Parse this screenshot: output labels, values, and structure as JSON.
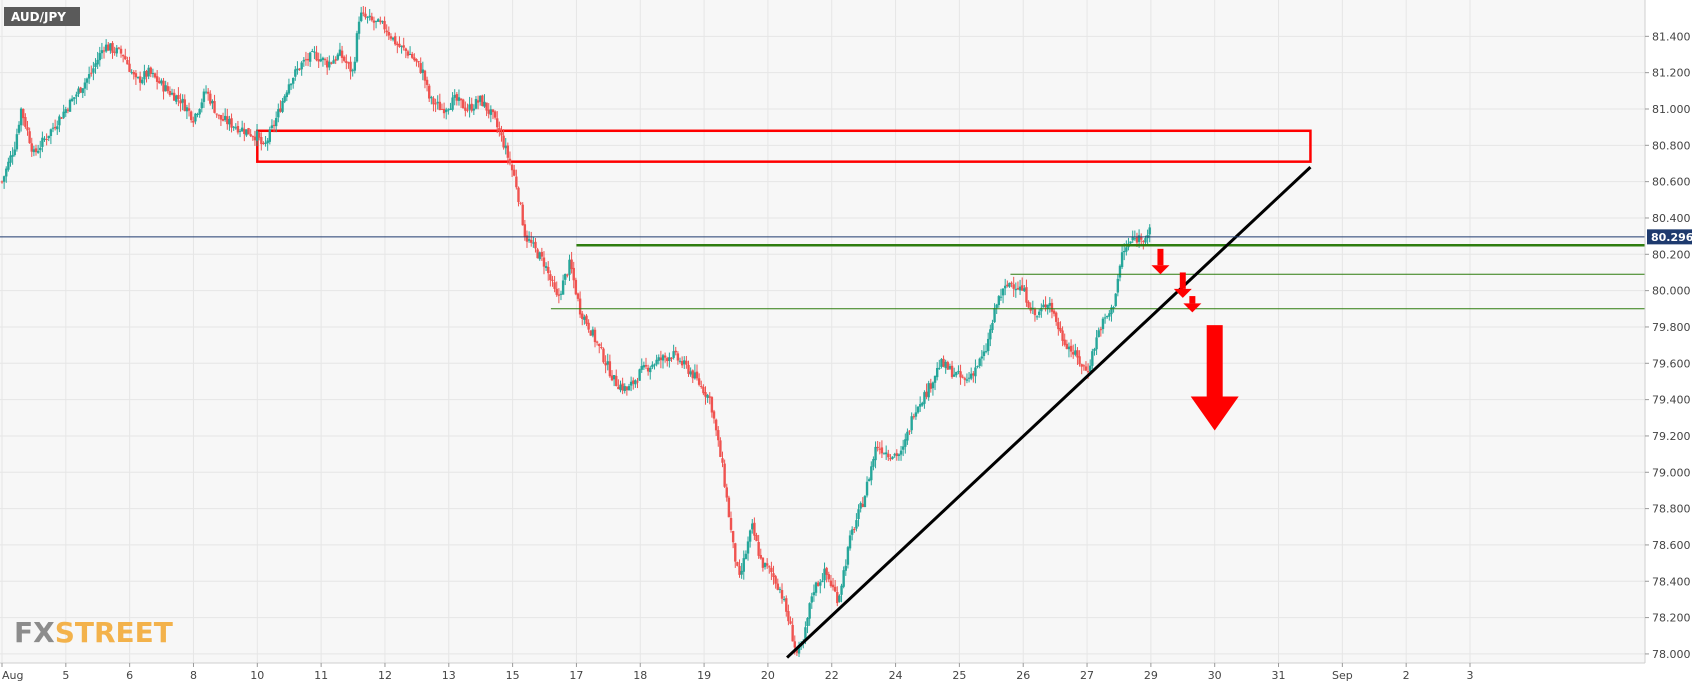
{
  "symbol": "AUD/JPY",
  "current_price": "80.296",
  "logo": "FXSTREET",
  "colors": {
    "bull": "#26a69a",
    "bear": "#ef5350",
    "zone": "#ff0000",
    "support": "#2e7d0f",
    "trendline": "#000000",
    "arrow": "#ff0000",
    "price_line": "#1e3a6e",
    "grid": "#e6e6e6",
    "background": "#f7f7f7"
  },
  "chart_data": {
    "type": "candlestick",
    "title": "AUD/JPY",
    "y_range": [
      77.95,
      81.6
    ],
    "y_ticks": [
      "78.000",
      "78.200",
      "78.400",
      "78.600",
      "78.800",
      "79.000",
      "79.200",
      "79.400",
      "79.600",
      "79.800",
      "80.000",
      "80.200",
      "80.400",
      "80.600",
      "80.800",
      "81.000",
      "81.200",
      "81.400"
    ],
    "x_range": [
      0,
      23
    ],
    "x_ticks": [
      {
        "label": "Aug",
        "x": 0
      },
      {
        "label": "5",
        "x": 1
      },
      {
        "label": "6",
        "x": 2
      },
      {
        "label": "8",
        "x": 3
      },
      {
        "label": "10",
        "x": 4
      },
      {
        "label": "11",
        "x": 5
      },
      {
        "label": "12",
        "x": 6
      },
      {
        "label": "13",
        "x": 7
      },
      {
        "label": "15",
        "x": 8
      },
      {
        "label": "17",
        "x": 9
      },
      {
        "label": "18",
        "x": 10
      },
      {
        "label": "19",
        "x": 11
      },
      {
        "label": "20",
        "x": 12
      },
      {
        "label": "22",
        "x": 13
      },
      {
        "label": "24",
        "x": 14
      },
      {
        "label": "25",
        "x": 15
      },
      {
        "label": "26",
        "x": 16
      },
      {
        "label": "27",
        "x": 17
      },
      {
        "label": "29",
        "x": 18
      },
      {
        "label": "30",
        "x": 19
      },
      {
        "label": "31",
        "x": 20
      },
      {
        "label": "Sep",
        "x": 21
      },
      {
        "label": "2",
        "x": 22
      },
      {
        "label": "3",
        "x": 23
      }
    ],
    "price_path": [
      [
        0.0,
        80.6
      ],
      [
        0.2,
        80.8
      ],
      [
        0.3,
        81.0
      ],
      [
        0.5,
        80.75
      ],
      [
        0.8,
        80.9
      ],
      [
        1.1,
        81.05
      ],
      [
        1.4,
        81.2
      ],
      [
        1.6,
        81.35
      ],
      [
        1.9,
        81.3
      ],
      [
        2.1,
        81.15
      ],
      [
        2.3,
        81.2
      ],
      [
        2.6,
        81.1
      ],
      [
        2.8,
        81.05
      ],
      [
        3.0,
        80.95
      ],
      [
        3.2,
        81.1
      ],
      [
        3.4,
        80.95
      ],
      [
        3.7,
        80.9
      ],
      [
        4.0,
        80.85
      ],
      [
        4.1,
        80.78
      ],
      [
        4.3,
        80.95
      ],
      [
        4.5,
        81.15
      ],
      [
        4.7,
        81.25
      ],
      [
        4.9,
        81.3
      ],
      [
        5.1,
        81.25
      ],
      [
        5.3,
        81.3
      ],
      [
        5.5,
        81.2
      ],
      [
        5.6,
        81.52
      ],
      [
        5.8,
        81.48
      ],
      [
        6.0,
        81.45
      ],
      [
        6.2,
        81.35
      ],
      [
        6.4,
        81.3
      ],
      [
        6.6,
        81.2
      ],
      [
        6.7,
        81.05
      ],
      [
        6.9,
        81.0
      ],
      [
        7.1,
        81.05
      ],
      [
        7.3,
        81.0
      ],
      [
        7.5,
        81.05
      ],
      [
        7.7,
        80.95
      ],
      [
        7.85,
        80.82
      ],
      [
        8.05,
        80.6
      ],
      [
        8.2,
        80.3
      ],
      [
        8.5,
        80.15
      ],
      [
        8.7,
        79.95
      ],
      [
        8.9,
        80.15
      ],
      [
        9.05,
        79.9
      ],
      [
        9.2,
        79.8
      ],
      [
        9.4,
        79.65
      ],
      [
        9.6,
        79.5
      ],
      [
        9.8,
        79.45
      ],
      [
        10.0,
        79.55
      ],
      [
        10.2,
        79.6
      ],
      [
        10.5,
        79.65
      ],
      [
        10.8,
        79.55
      ],
      [
        11.1,
        79.4
      ],
      [
        11.3,
        79.0
      ],
      [
        11.45,
        78.6
      ],
      [
        11.55,
        78.4
      ],
      [
        11.75,
        78.7
      ],
      [
        11.9,
        78.5
      ],
      [
        12.05,
        78.45
      ],
      [
        12.2,
        78.35
      ],
      [
        12.35,
        78.15
      ],
      [
        12.45,
        78.0
      ],
      [
        12.55,
        78.05
      ],
      [
        12.7,
        78.35
      ],
      [
        12.9,
        78.45
      ],
      [
        13.1,
        78.3
      ],
      [
        13.3,
        78.65
      ],
      [
        13.5,
        78.85
      ],
      [
        13.7,
        79.15
      ],
      [
        13.9,
        79.1
      ],
      [
        14.1,
        79.1
      ],
      [
        14.3,
        79.35
      ],
      [
        14.5,
        79.45
      ],
      [
        14.7,
        79.6
      ],
      [
        14.9,
        79.55
      ],
      [
        15.1,
        79.5
      ],
      [
        15.4,
        79.65
      ],
      [
        15.6,
        79.95
      ],
      [
        15.8,
        80.05
      ],
      [
        16.0,
        80.0
      ],
      [
        16.2,
        79.85
      ],
      [
        16.4,
        79.95
      ],
      [
        16.6,
        79.75
      ],
      [
        16.8,
        79.65
      ],
      [
        17.0,
        79.55
      ],
      [
        17.2,
        79.8
      ],
      [
        17.4,
        79.9
      ],
      [
        17.55,
        80.2
      ],
      [
        17.7,
        80.28
      ],
      [
        17.9,
        80.3
      ],
      [
        18.0,
        80.33
      ]
    ],
    "annotations": {
      "resistance_zone": [
        80.71,
        80.88
      ],
      "resistance_zone_x": [
        4.0,
        20.5
      ],
      "support_levels": [
        {
          "value": 80.25,
          "x_start": 9.0
        },
        {
          "value": 80.09,
          "x_start": 15.8
        },
        {
          "value": 79.9,
          "x_start": 8.6
        }
      ],
      "trendline": [
        [
          12.3,
          77.98
        ],
        [
          20.5,
          80.68
        ]
      ],
      "arrows": [
        {
          "x": 18.15,
          "from": 80.23,
          "to": 80.09,
          "size": "small"
        },
        {
          "x": 18.5,
          "from": 80.1,
          "to": 79.96,
          "size": "small"
        },
        {
          "x": 18.65,
          "from": 79.97,
          "to": 79.88,
          "size": "small"
        },
        {
          "x": 19.0,
          "from": 79.81,
          "to": 79.23,
          "size": "large"
        }
      ]
    }
  }
}
